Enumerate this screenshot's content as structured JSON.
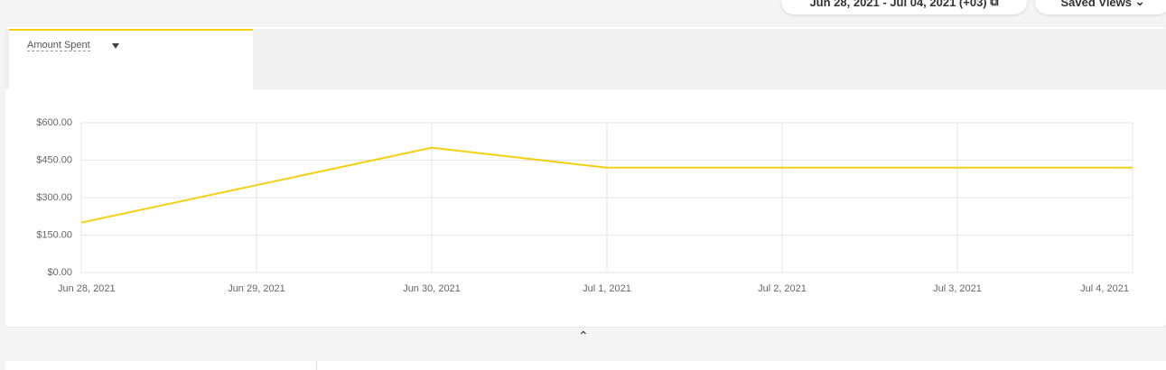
{
  "header": {
    "date_range": "Jun 28, 2021 - Jul 04, 2021 (+03)",
    "saved_views": "Saved Views"
  },
  "tabs": {
    "active": "Amount Spent"
  },
  "chart_data": {
    "type": "line",
    "categories": [
      "Jun 28, 2021",
      "Jun 29, 2021",
      "Jun 30, 2021",
      "Jul 1, 2021",
      "Jul 2, 2021",
      "Jul 3, 2021",
      "Jul 4, 2021"
    ],
    "series": [
      {
        "name": "Amount Spent",
        "color": "#f5cf14",
        "values": [
          200,
          350,
          500,
          420,
          420,
          420,
          420
        ]
      }
    ],
    "ylim": [
      0,
      600
    ],
    "yticks": [
      {
        "value": 0,
        "label": "$0.00"
      },
      {
        "value": 150,
        "label": "$150.00"
      },
      {
        "value": 300,
        "label": "$300.00"
      },
      {
        "value": 450,
        "label": "$450.00"
      },
      {
        "value": 600,
        "label": "$600.00"
      }
    ],
    "grid": true
  }
}
